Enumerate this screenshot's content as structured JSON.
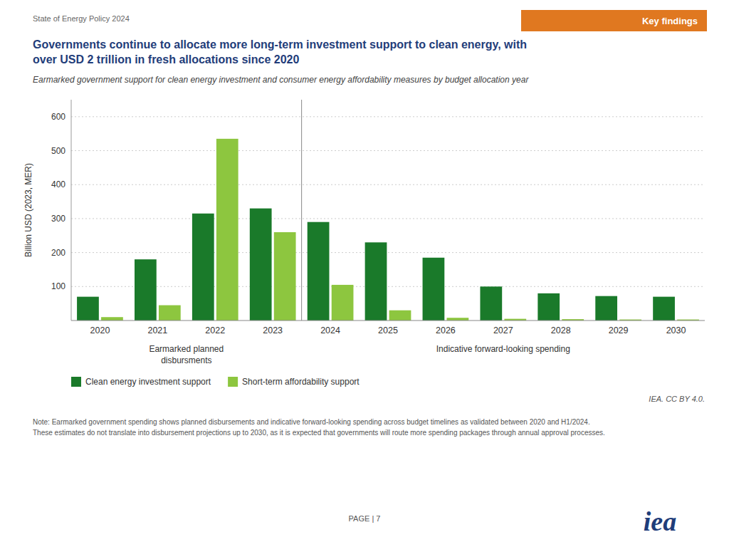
{
  "chart_data": {
    "type": "bar",
    "header": "State of Energy Policy 2024",
    "badge": "Key findings",
    "title": "Governments continue to allocate more long-term investment support to clean energy, with\nover USD 2 trillion in fresh allocations since 2020",
    "subtitle": "Earmarked government support for clean energy investment and consumer energy affordability measures by budget allocation year",
    "y_label": "Billion USD (2023, MER)",
    "categories": [
      "2020",
      "2021",
      "2022",
      "2023",
      "2024",
      "2025",
      "2026",
      "2027",
      "2028",
      "2029",
      "2030"
    ],
    "series": [
      {
        "name": "Clean energy investment support",
        "color": "#1a7a2a",
        "values": [
          70,
          180,
          315,
          330,
          290,
          230,
          185,
          100,
          80,
          72,
          70
        ]
      },
      {
        "name": "Short-term affordability support",
        "color": "#8dc63f",
        "values": [
          10,
          45,
          535,
          260,
          105,
          30,
          8,
          5,
          4,
          3,
          3
        ]
      }
    ],
    "ylim": [
      0,
      650
    ],
    "yticks": [
      100,
      200,
      300,
      400,
      500,
      600
    ],
    "grid": true,
    "legend": "lower left",
    "section_labels": [
      "Earmarked planned\ndisbursments",
      "Indicative forward-looking spending"
    ],
    "source": "IEA. CC BY 4.0.",
    "notes": [
      "Note: Earmarked government spending shows planned disbursements and indicative forward-looking spending across budget timelines as validated between 2020 and H1/2024.",
      "These estimates do not translate into disbursement projections up to 2030, as it is expected that governments will route more spending packages through annual approval processes."
    ],
    "page_label": "PAGE | 7",
    "logo": "iea"
  }
}
